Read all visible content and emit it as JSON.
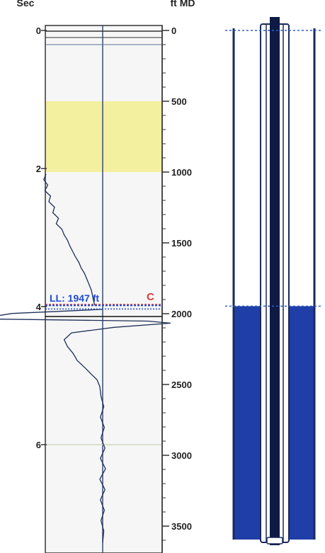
{
  "header": {
    "left_axis_title": "Sec",
    "right_axis_title": "ft MD"
  },
  "time_axis": {
    "unit": "Sec",
    "ticks": [
      {
        "label": "0",
        "value": 0
      },
      {
        "label": "2",
        "value": 2
      },
      {
        "label": "4",
        "value": 4
      },
      {
        "label": "6",
        "value": 6
      }
    ],
    "range": [
      0,
      7.42
    ]
  },
  "depth_axis": {
    "unit": "ft MD",
    "ticks": [
      {
        "label": "0",
        "value": 0
      },
      {
        "label": "500",
        "value": 500
      },
      {
        "label": "1000",
        "value": 1000
      },
      {
        "label": "1500",
        "value": 1500
      },
      {
        "label": "2000",
        "value": 2000
      },
      {
        "label": "2500",
        "value": 2500
      },
      {
        "label": "3000",
        "value": 3000
      },
      {
        "label": "3500",
        "value": 3500
      }
    ],
    "minor_step": 100,
    "range": [
      0,
      3700
    ]
  },
  "liquid_level": {
    "label": "LL: 1947 ft",
    "depth_ft": 1947,
    "marker_label": "C",
    "marker_depth_ft": 1935
  },
  "annotations": {
    "highlight_band": {
      "from_ft": 500,
      "to_ft": 1000,
      "color": "#f3f0a0"
    }
  },
  "well_diagram": {
    "surface_line_depth_ft": 0,
    "fluid_top_depth_ft": 1947,
    "fluid_color": "#1f3ea8",
    "casing_color": "#1a2a5a"
  },
  "chart_data": {
    "type": "line",
    "title": "",
    "xlabel": "",
    "ylabel": "Sec",
    "ylim": [
      0,
      7.42
    ],
    "series": [
      {
        "points": [
          [
            0.0,
            2.08
          ],
          [
            -0.04,
            2.16
          ],
          [
            0.03,
            2.24
          ],
          [
            -0.02,
            2.32
          ],
          [
            0.08,
            2.4
          ],
          [
            0.05,
            2.48
          ],
          [
            0.15,
            2.56
          ],
          [
            0.12,
            2.64
          ],
          [
            0.22,
            2.72
          ],
          [
            0.18,
            2.8
          ],
          [
            0.28,
            2.88
          ],
          [
            0.32,
            2.96
          ],
          [
            0.38,
            3.04
          ],
          [
            0.42,
            3.12
          ],
          [
            0.47,
            3.2
          ],
          [
            0.52,
            3.28
          ],
          [
            0.58,
            3.36
          ],
          [
            0.62,
            3.44
          ],
          [
            0.68,
            3.52
          ],
          [
            0.72,
            3.6
          ],
          [
            0.76,
            3.68
          ],
          [
            0.8,
            3.76
          ],
          [
            0.82,
            3.84
          ],
          [
            0.84,
            3.92
          ],
          [
            0.86,
            3.98
          ]
        ]
      },
      {
        "points": [
          [
            1.0,
            4.04
          ],
          [
            0.2,
            4.07
          ],
          [
            -0.6,
            4.1
          ],
          [
            -0.9,
            4.14
          ],
          [
            -1.0,
            4.18
          ],
          [
            1.8,
            4.21
          ],
          [
            2.2,
            4.24
          ],
          [
            1.2,
            4.3
          ],
          [
            0.45,
            4.38
          ],
          [
            0.32,
            4.48
          ],
          [
            0.38,
            4.58
          ],
          [
            0.48,
            4.68
          ],
          [
            0.55,
            4.78
          ],
          [
            0.68,
            4.88
          ],
          [
            0.8,
            4.98
          ],
          [
            0.9,
            5.06
          ],
          [
            0.95,
            5.16
          ],
          [
            0.97,
            5.3
          ],
          [
            1.02,
            5.45
          ],
          [
            0.96,
            5.6
          ],
          [
            1.03,
            5.75
          ],
          [
            0.97,
            5.9
          ],
          [
            1.04,
            6.05
          ],
          [
            0.96,
            6.2
          ],
          [
            1.05,
            6.35
          ],
          [
            0.95,
            6.5
          ],
          [
            1.04,
            6.65
          ],
          [
            0.96,
            6.8
          ],
          [
            1.03,
            6.95
          ],
          [
            0.97,
            7.1
          ],
          [
            1.02,
            7.25
          ],
          [
            1.0,
            7.42
          ]
        ]
      }
    ]
  }
}
